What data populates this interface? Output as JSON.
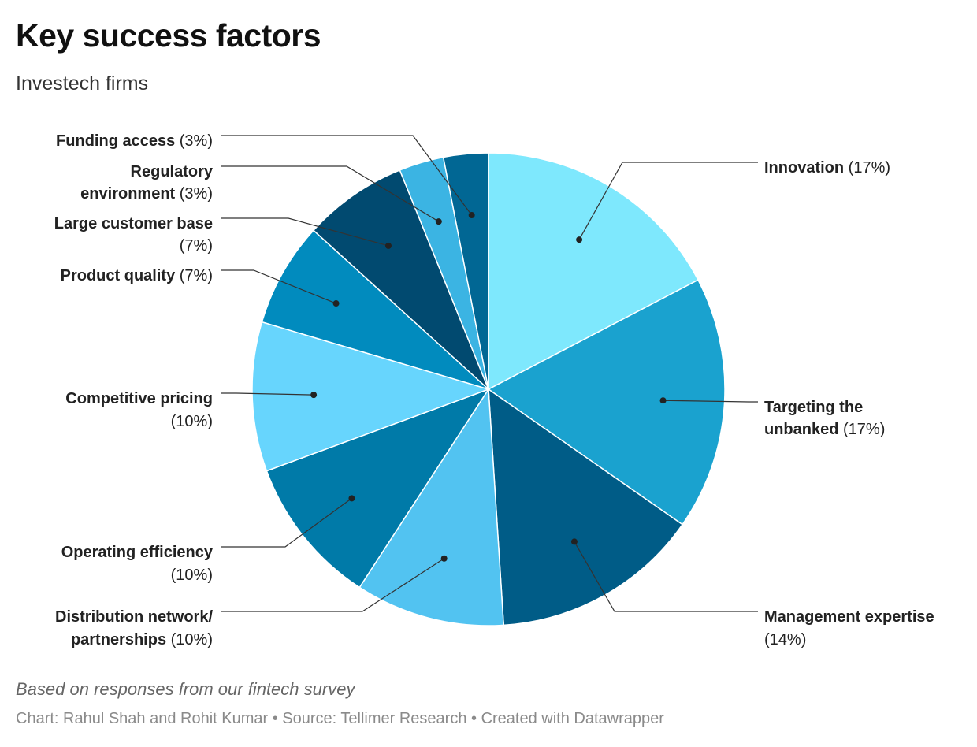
{
  "header": {
    "title": "Key success factors",
    "subtitle": "Investech firms"
  },
  "footer": {
    "notes": "Based on responses from our fintech survey",
    "credits": "Chart: Rahul Shah and Rohit Kumar • Source: Tellimer Research • Created with Datawrapper"
  },
  "chart_data": {
    "type": "pie",
    "start": "top, clockwise",
    "slices": [
      {
        "label": "Innovation",
        "value": 17,
        "color": "#7ee8fd"
      },
      {
        "label": "Targeting the unbanked",
        "value": 17,
        "color": "#1aa2cf"
      },
      {
        "label": "Management expertise",
        "value": 14,
        "color": "#005c87"
      },
      {
        "label": "Distribution network/ partnerships",
        "value": 10,
        "color": "#52c3f1"
      },
      {
        "label": "Operating efficiency",
        "value": 10,
        "color": "#007aa8"
      },
      {
        "label": "Competitive pricing",
        "value": 10,
        "color": "#67d5fd"
      },
      {
        "label": "Product quality",
        "value": 7,
        "color": "#018bbe"
      },
      {
        "label": "Large customer base",
        "value": 7,
        "color": "#014a70"
      },
      {
        "label": "Regulatory environment",
        "value": 3,
        "color": "#3bb4e3"
      },
      {
        "label": "Funding access",
        "value": 3,
        "color": "#016794"
      }
    ],
    "value_suffix": "%"
  }
}
